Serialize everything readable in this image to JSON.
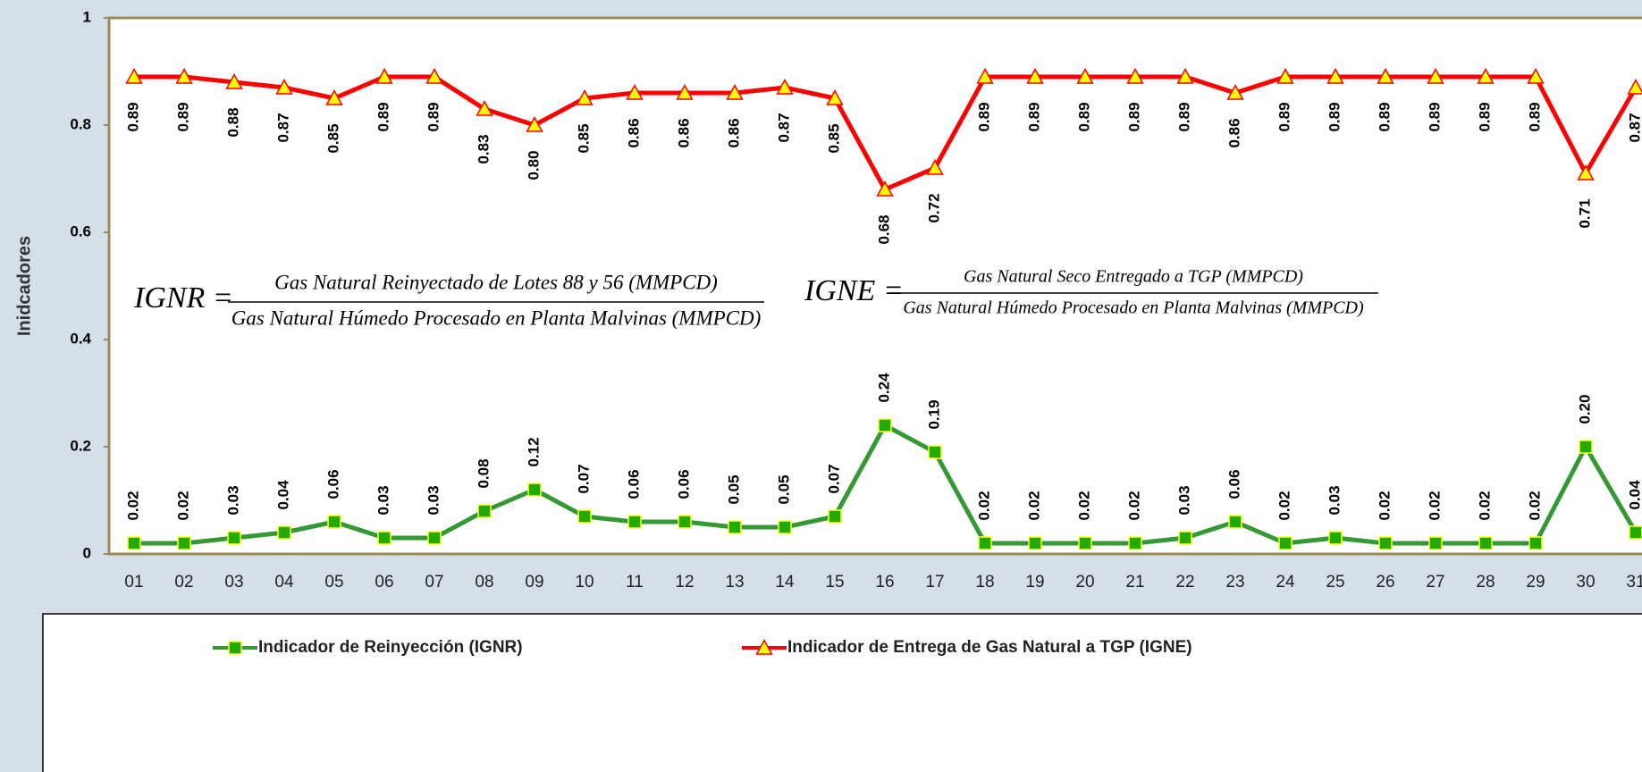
{
  "chart_data": {
    "type": "line",
    "y_label": "Inidcadores",
    "categories": [
      "01",
      "02",
      "03",
      "04",
      "05",
      "06",
      "07",
      "08",
      "09",
      "10",
      "11",
      "12",
      "13",
      "14",
      "15",
      "16",
      "17",
      "18",
      "19",
      "20",
      "21",
      "22",
      "23",
      "24",
      "25",
      "26",
      "27",
      "28",
      "29",
      "30",
      "31"
    ],
    "ylim": [
      0,
      1
    ],
    "yticks": [
      0,
      0.2,
      0.4,
      0.6,
      0.8,
      1
    ],
    "series": [
      {
        "name": "Indicador de Reinyección (IGNR)",
        "color": "#339933",
        "marker": "square",
        "marker_color": "#22aa00",
        "marker_edge": "#ffff33",
        "label_position": "above",
        "values": [
          0.02,
          0.02,
          0.03,
          0.04,
          0.06,
          0.03,
          0.03,
          0.08,
          0.12,
          0.07,
          0.06,
          0.06,
          0.05,
          0.05,
          0.07,
          0.24,
          0.19,
          0.02,
          0.02,
          0.02,
          0.02,
          0.03,
          0.06,
          0.02,
          0.03,
          0.02,
          0.02,
          0.02,
          0.02,
          0.2,
          0.04
        ],
        "value_labels": [
          "0.02",
          "0.02",
          "0.03",
          "0.04",
          "0.06",
          "0.03",
          "0.03",
          "0.08",
          "0.12",
          "0.07",
          "0.06",
          "0.06",
          "0.05",
          "0.05",
          "0.07",
          "0.24",
          "0.19",
          "0.02",
          "0.02",
          "0.02",
          "0.02",
          "0.03",
          "0.06",
          "0.02",
          "0.03",
          "0.02",
          "0.02",
          "0.02",
          "0.02",
          "0.20",
          "0.04"
        ]
      },
      {
        "name": "Indicador de Entrega de Gas Natural a TGP (IGNE)",
        "color": "#ff0000",
        "marker": "triangle",
        "marker_color": "#ffff00",
        "marker_edge": "#ff0000",
        "label_position": "below",
        "values": [
          0.89,
          0.89,
          0.88,
          0.87,
          0.85,
          0.89,
          0.89,
          0.83,
          0.8,
          0.85,
          0.86,
          0.86,
          0.86,
          0.87,
          0.85,
          0.68,
          0.72,
          0.89,
          0.89,
          0.89,
          0.89,
          0.89,
          0.86,
          0.89,
          0.89,
          0.89,
          0.89,
          0.89,
          0.89,
          0.71,
          0.87
        ],
        "value_labels": [
          "0.89",
          "0.89",
          "0.88",
          "0.87",
          "0.85",
          "0.89",
          "0.89",
          "0.83",
          "0.80",
          "0.85",
          "0.86",
          "0.86",
          "0.86",
          "0.87",
          "0.85",
          "0.68",
          "0.72",
          "0.89",
          "0.89",
          "0.89",
          "0.89",
          "0.89",
          "0.86",
          "0.89",
          "0.89",
          "0.89",
          "0.89",
          "0.89",
          "0.89",
          "0.71",
          "0.87"
        ]
      }
    ],
    "annotations": [
      {
        "lhs": "IGNR =",
        "numerator": "Gas Natural Reinyectado de Lotes 88 y 56 (MMPCD)",
        "denominator": "Gas Natural Húmedo Procesado en Planta Malvinas (MMPCD)"
      },
      {
        "lhs": "IGNE =",
        "numerator": "Gas Natural Seco Entregado a TGP (MMPCD)",
        "denominator": "Gas Natural Húmedo Procesado en Planta Malvinas (MMPCD)"
      }
    ]
  }
}
